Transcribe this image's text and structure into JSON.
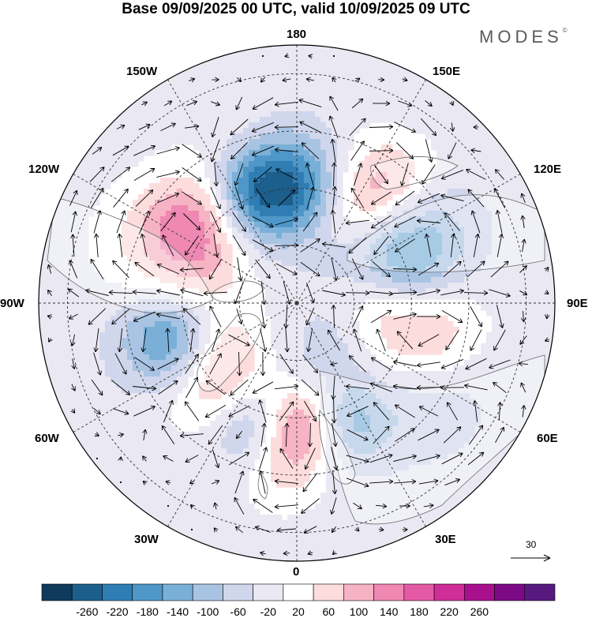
{
  "title": "Base 09/09/2025 00 UTC, valid 10/09/2025 09 UTC",
  "brand": {
    "text": "MODES",
    "mark": "©"
  },
  "longitude_labels": {
    "lon_180": "180",
    "lon_150e": "150E",
    "lon_120e": "120E",
    "lon_90e": "90E",
    "lon_60e": "60E",
    "lon_30e": "30E",
    "lon_0": "0",
    "lon_30w": "30W",
    "lon_60w": "60W",
    "lon_90w": "90W",
    "lon_120w": "120W",
    "lon_150w": "150W"
  },
  "reference_vector": {
    "label": "30"
  },
  "colorbar": {
    "ticks": [
      "-260",
      "-220",
      "-180",
      "-140",
      "-100",
      "-60",
      "-20",
      "20",
      "60",
      "100",
      "140",
      "180",
      "220",
      "260"
    ],
    "colors": [
      "#0f3a5c",
      "#1c5e8c",
      "#2f7db3",
      "#4f97c8",
      "#7ab0d8",
      "#a9c4e3",
      "#d0d6ec",
      "#e9e8f3",
      "#ffffff",
      "#fcdcdc",
      "#f6b3c3",
      "#ef88b3",
      "#e45aa4",
      "#cf2d98",
      "#a8108e",
      "#7c0a86",
      "#561a7e"
    ]
  },
  "anomalies": [
    {
      "lon_deg": 174,
      "colat_deg": 40,
      "value": -200,
      "sigma_deg": 13
    },
    {
      "lon_deg": 149,
      "colat_deg": 41,
      "value": 210,
      "sigma_deg": 14
    },
    {
      "lon_deg": 118,
      "colat_deg": 42,
      "value": -160,
      "sigma_deg": 16
    },
    {
      "lon_deg": 104,
      "colat_deg": 33,
      "value": -110,
      "sigma_deg": 14
    },
    {
      "lon_deg": 80,
      "colat_deg": 42,
      "value": 170,
      "sigma_deg": 15
    },
    {
      "lon_deg": 97,
      "colat_deg": 27,
      "value": 90,
      "sigma_deg": 10
    },
    {
      "lon_deg": 20,
      "colat_deg": 45,
      "value": -150,
      "sigma_deg": 10
    },
    {
      "lon_deg": 48,
      "colat_deg": 50,
      "value": -40,
      "sigma_deg": 16
    },
    {
      "lon_deg": 5,
      "colat_deg": 43,
      "value": 190,
      "sigma_deg": 10
    },
    {
      "lon_deg": -23,
      "colat_deg": 46,
      "value": -90,
      "sigma_deg": 10
    },
    {
      "lon_deg": -45,
      "colat_deg": 42,
      "value": 110,
      "sigma_deg": 12
    },
    {
      "lon_deg": -75,
      "colat_deg": 44,
      "value": -190,
      "sigma_deg": 13
    },
    {
      "lon_deg": -60,
      "colat_deg": 30,
      "value": 80,
      "sigma_deg": 10
    },
    {
      "lon_deg": -100,
      "colat_deg": 36,
      "value": 90,
      "sigma_deg": 14
    },
    {
      "lon_deg": -115,
      "colat_deg": 52,
      "value": 70,
      "sigma_deg": 16
    },
    {
      "lon_deg": -130,
      "colat_deg": 46,
      "value": 110,
      "sigma_deg": 11
    },
    {
      "lon_deg": -160,
      "colat_deg": 42,
      "value": -190,
      "sigma_deg": 12
    },
    {
      "lon_deg": -155,
      "colat_deg": 56,
      "value": 40,
      "sigma_deg": 12
    },
    {
      "lon_deg": 140,
      "colat_deg": 58,
      "value": 50,
      "sigma_deg": 10
    },
    {
      "lon_deg": 60,
      "colat_deg": 58,
      "value": -30,
      "sigma_deg": 16
    },
    {
      "lon_deg": -5,
      "colat_deg": 60,
      "value": 60,
      "sigma_deg": 10
    },
    {
      "lon_deg": 35,
      "colat_deg": 20,
      "value": -40,
      "sigma_deg": 10
    }
  ]
}
